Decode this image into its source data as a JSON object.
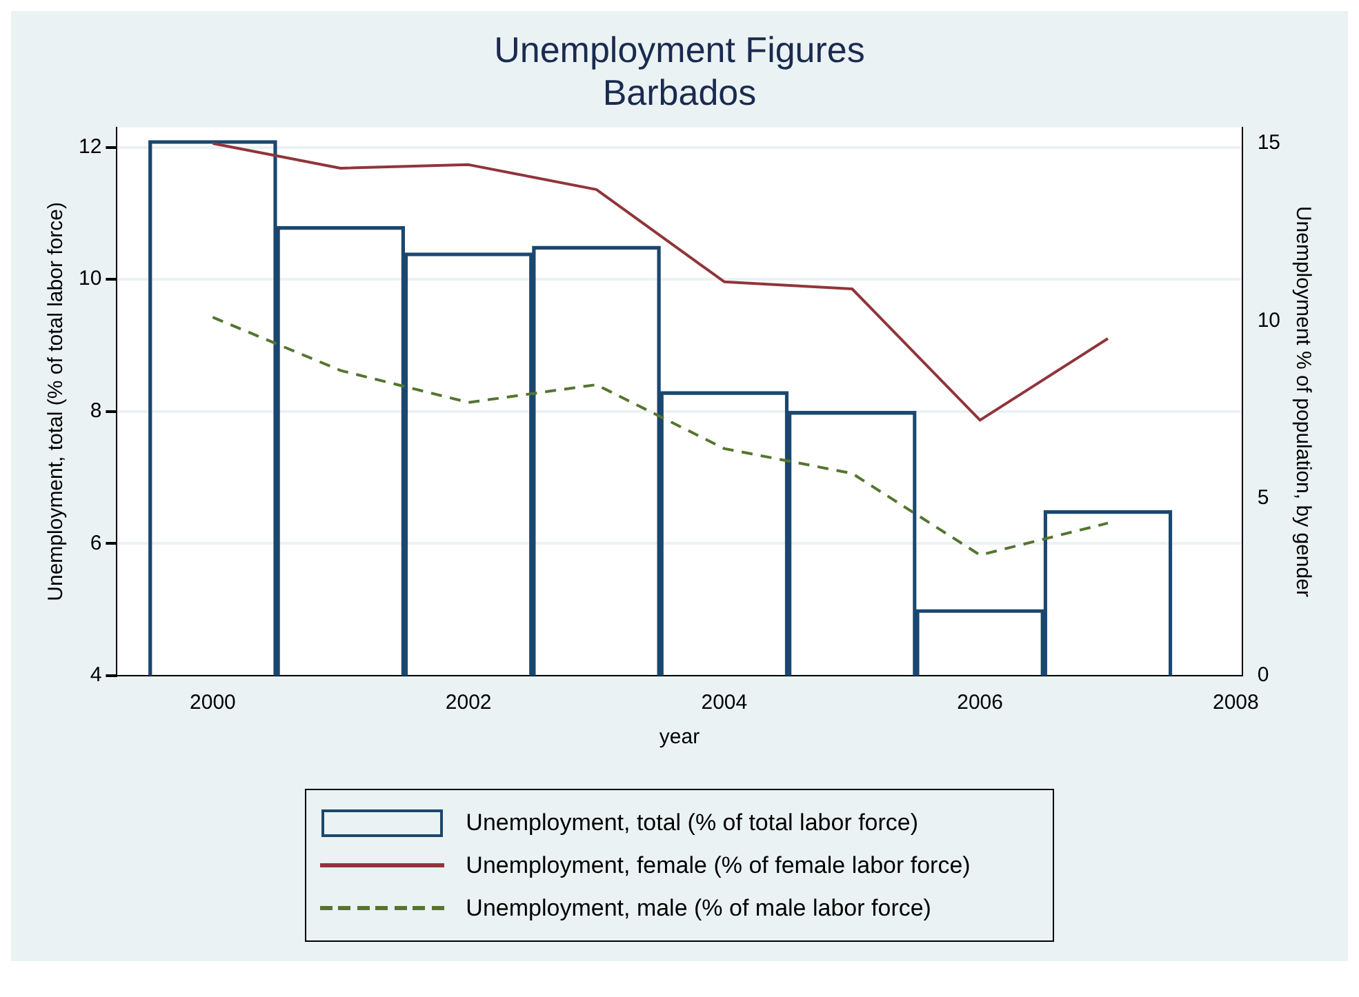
{
  "chart_data": {
    "type": "bar",
    "title": "Unemployment Figures",
    "subtitle": "Barbados",
    "xlabel": "year",
    "ylabel": "Unemployment, total (% of total labor force)",
    "y2label": "Unemployment % of population, by gender",
    "x": [
      2000,
      2001,
      2002,
      2003,
      2004,
      2005,
      2006,
      2007
    ],
    "xlim": [
      1999.25,
      2008.05
    ],
    "xticks": [
      2000,
      2002,
      2004,
      2006,
      2008
    ],
    "ylim": [
      4,
      12.3
    ],
    "yticks": [
      4,
      6,
      8,
      10,
      12
    ],
    "y2lim": [
      0,
      15.45
    ],
    "y2ticks": [
      0,
      5,
      10,
      15
    ],
    "grid": "y",
    "legend": "bottom",
    "marker": "none",
    "series": [
      {
        "name": "Unemployment, total (% of total labor force)",
        "color": "#1a476f",
        "values": [
          12.1,
          10.8,
          10.4,
          10.5,
          8.3,
          8.0,
          5.0,
          6.5
        ]
      },
      {
        "name": "Unemployment, female (% of female labor force)",
        "type": "line",
        "axis": "y2",
        "color": "#90353b",
        "line_style": "solid",
        "values": [
          15.0,
          14.3,
          14.4,
          13.7,
          11.1,
          10.9,
          7.2,
          9.5
        ]
      },
      {
        "name": "Unemployment, male (% of male labor force)",
        "type": "line",
        "axis": "y2",
        "color": "#55752f",
        "line_style": "dashed",
        "values": [
          10.1,
          8.6,
          7.7,
          8.2,
          6.4,
          5.7,
          3.4,
          4.3
        ]
      }
    ]
  }
}
